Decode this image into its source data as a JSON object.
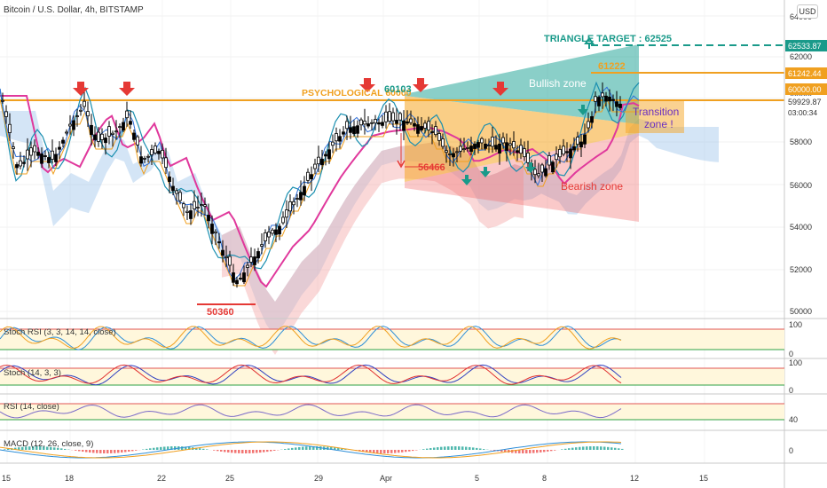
{
  "header": {
    "title": "Bitcoin / U.S. Dollar, 4h, BITSTAMP",
    "currency_button": "USD"
  },
  "price_axis": {
    "ticks": [
      "64000",
      "62000",
      "60000",
      "58000",
      "56000",
      "54000",
      "52000",
      "50000"
    ],
    "tags": {
      "target": "62533.87",
      "orange_line": "61242.44",
      "resistance": "60000.00",
      "last_price": "59929.87",
      "countdown": "03:00:34"
    }
  },
  "time_axis": {
    "ticks": [
      "15",
      "18",
      "22",
      "25",
      "29",
      "Apr",
      "5",
      "8",
      "12",
      "15"
    ]
  },
  "annotations": {
    "triangle_target": "TRIANGLE TARGET : 62525",
    "level_61222": "61222",
    "psychological": "PSYCHOLOGICAL 60000",
    "level_60103": "60103",
    "bullish_zone": "Bullish zone",
    "transition_zone_1": "Transition",
    "transition_zone_2": "zone !",
    "level_56466": "56466",
    "bearish_zone": "Bearish zone",
    "level_50360": "50360"
  },
  "indicators": {
    "stoch_rsi": {
      "label": "Stoch RSI (3, 3, 14, 14, close)",
      "ticks": [
        "100",
        "0"
      ]
    },
    "stoch": {
      "label": "Stoch (14, 3, 3)",
      "ticks": [
        "100",
        "0"
      ]
    },
    "rsi": {
      "label": "RSI (14, close)",
      "ticks": [
        "40"
      ]
    },
    "macd": {
      "label": "MACD (12, 26, close, 9)",
      "ticks": [
        "0"
      ]
    }
  },
  "colors": {
    "candle_up": "#000000",
    "candle_down": "#ffffff",
    "resistance": "#f0a020",
    "target": "#1a9a8a",
    "ma": "#e0389c",
    "bullish_zone": "#2aa89a",
    "transition_zone": "#f5a623",
    "bearish_zone": "#f06565",
    "marker_red": "#e53935",
    "marker_teal": "#1a9a8a"
  }
}
